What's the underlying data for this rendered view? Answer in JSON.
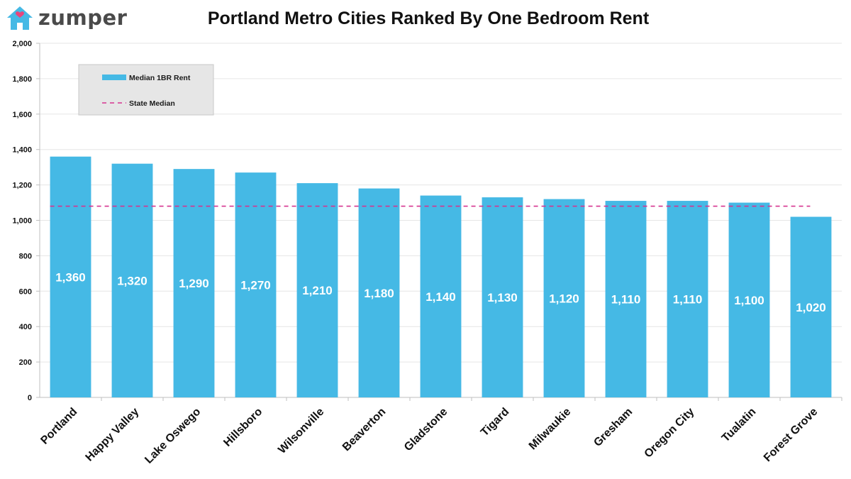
{
  "brand": {
    "name": "zumper"
  },
  "chart_data": {
    "type": "bar",
    "title": "Portland Metro Cities Ranked By One Bedroom Rent",
    "categories": [
      "Portland",
      "Happy Valley",
      "Lake Oswego",
      "Hillsboro",
      "Wilsonville",
      "Beaverton",
      "Gladstone",
      "Tigard",
      "Milwaukie",
      "Gresham",
      "Oregon City",
      "Tualatin",
      "Forest Grove"
    ],
    "series": [
      {
        "name": "Median 1BR Rent",
        "values": [
          1360,
          1320,
          1290,
          1270,
          1210,
          1180,
          1140,
          1130,
          1120,
          1110,
          1110,
          1100,
          1020
        ],
        "data_labels": [
          "1,360",
          "1,320",
          "1,290",
          "1,270",
          "1,210",
          "1,180",
          "1,140",
          "1,130",
          "1,120",
          "1,110",
          "1,110",
          "1,100",
          "1,020"
        ]
      }
    ],
    "reference_line": {
      "name": "State Median",
      "value": 1080,
      "style": "dashed"
    },
    "ylim": [
      0,
      2000
    ],
    "yticks": [
      0,
      200,
      400,
      600,
      800,
      1000,
      1200,
      1400,
      1600,
      1800,
      2000
    ],
    "ytick_labels": [
      "0",
      "200",
      "400",
      "600",
      "800",
      "1,000",
      "1,200",
      "1,400",
      "1,600",
      "1,800",
      "2,000"
    ],
    "xlabel": "",
    "ylabel": "",
    "grid": true,
    "legend_position": "top-left",
    "colors": {
      "bar": "#45b9e5",
      "reference_line": "#d6338f",
      "legend_bg": "#e6e6e6",
      "logo": "#45b9e5",
      "logo_heart": "#e8457c"
    }
  }
}
